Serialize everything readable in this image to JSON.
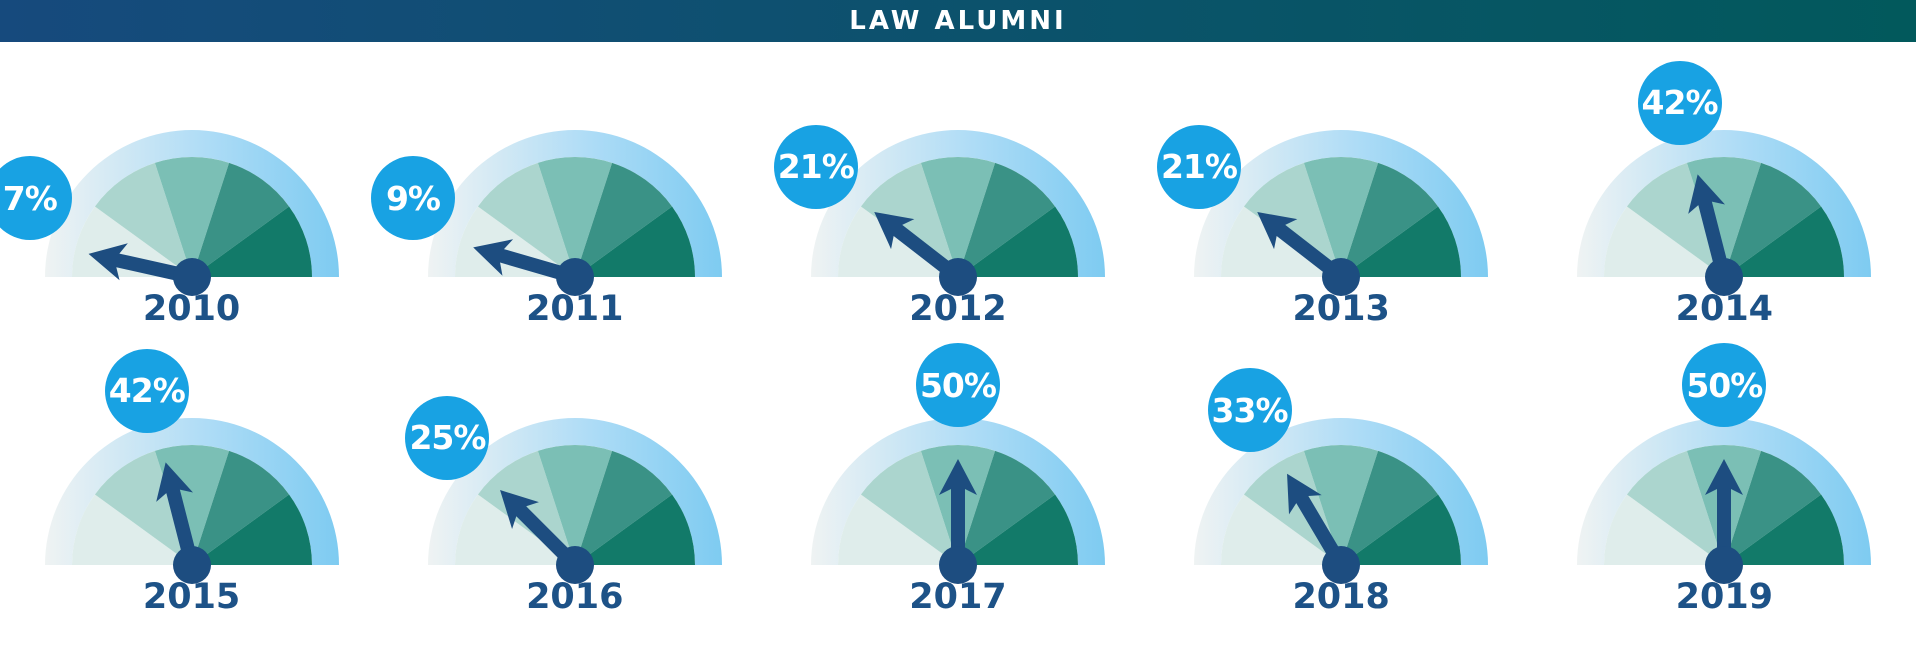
{
  "header": {
    "title": "LAW ALUMNI"
  },
  "palette": {
    "banner_gradient_left": "#164a7d",
    "banner_gradient_right": "#02595c",
    "badge_blue": "#18a2e3",
    "needle_navy": "#1d4d80",
    "year_navy": "#1d5287",
    "ring_gradient": [
      "#eff3f3",
      "#aedcf6",
      "#7ecbf1"
    ],
    "wedge_colors": [
      "#dfedeb",
      "#abd5ce",
      "#7bbfb5",
      "#3a9286",
      "#127a69"
    ]
  },
  "gauges": [
    {
      "year": "2010",
      "value": 7,
      "label": "7%"
    },
    {
      "year": "2011",
      "value": 9,
      "label": "9%"
    },
    {
      "year": "2012",
      "value": 21,
      "label": "21%"
    },
    {
      "year": "2013",
      "value": 21,
      "label": "21%"
    },
    {
      "year": "2014",
      "value": 42,
      "label": "42%"
    },
    {
      "year": "2015",
      "value": 42,
      "label": "42%"
    },
    {
      "year": "2016",
      "value": 25,
      "label": "25%"
    },
    {
      "year": "2017",
      "value": 50,
      "label": "50%"
    },
    {
      "year": "2018",
      "value": 33,
      "label": "33%"
    },
    {
      "year": "2019",
      "value": 50,
      "label": "50%"
    }
  ],
  "chart_data": {
    "type": "gauge",
    "title": "LAW ALUMNI",
    "categories": [
      "2010",
      "2011",
      "2012",
      "2013",
      "2014",
      "2015",
      "2016",
      "2017",
      "2018",
      "2019"
    ],
    "values": [
      7,
      9,
      21,
      21,
      42,
      42,
      25,
      50,
      33,
      50
    ],
    "unit": "%",
    "gauge_range": [
      0,
      100
    ],
    "segments_per_gauge": 5,
    "layout": "2 rows x 5 columns, semicircular dials with needle and value badge"
  }
}
